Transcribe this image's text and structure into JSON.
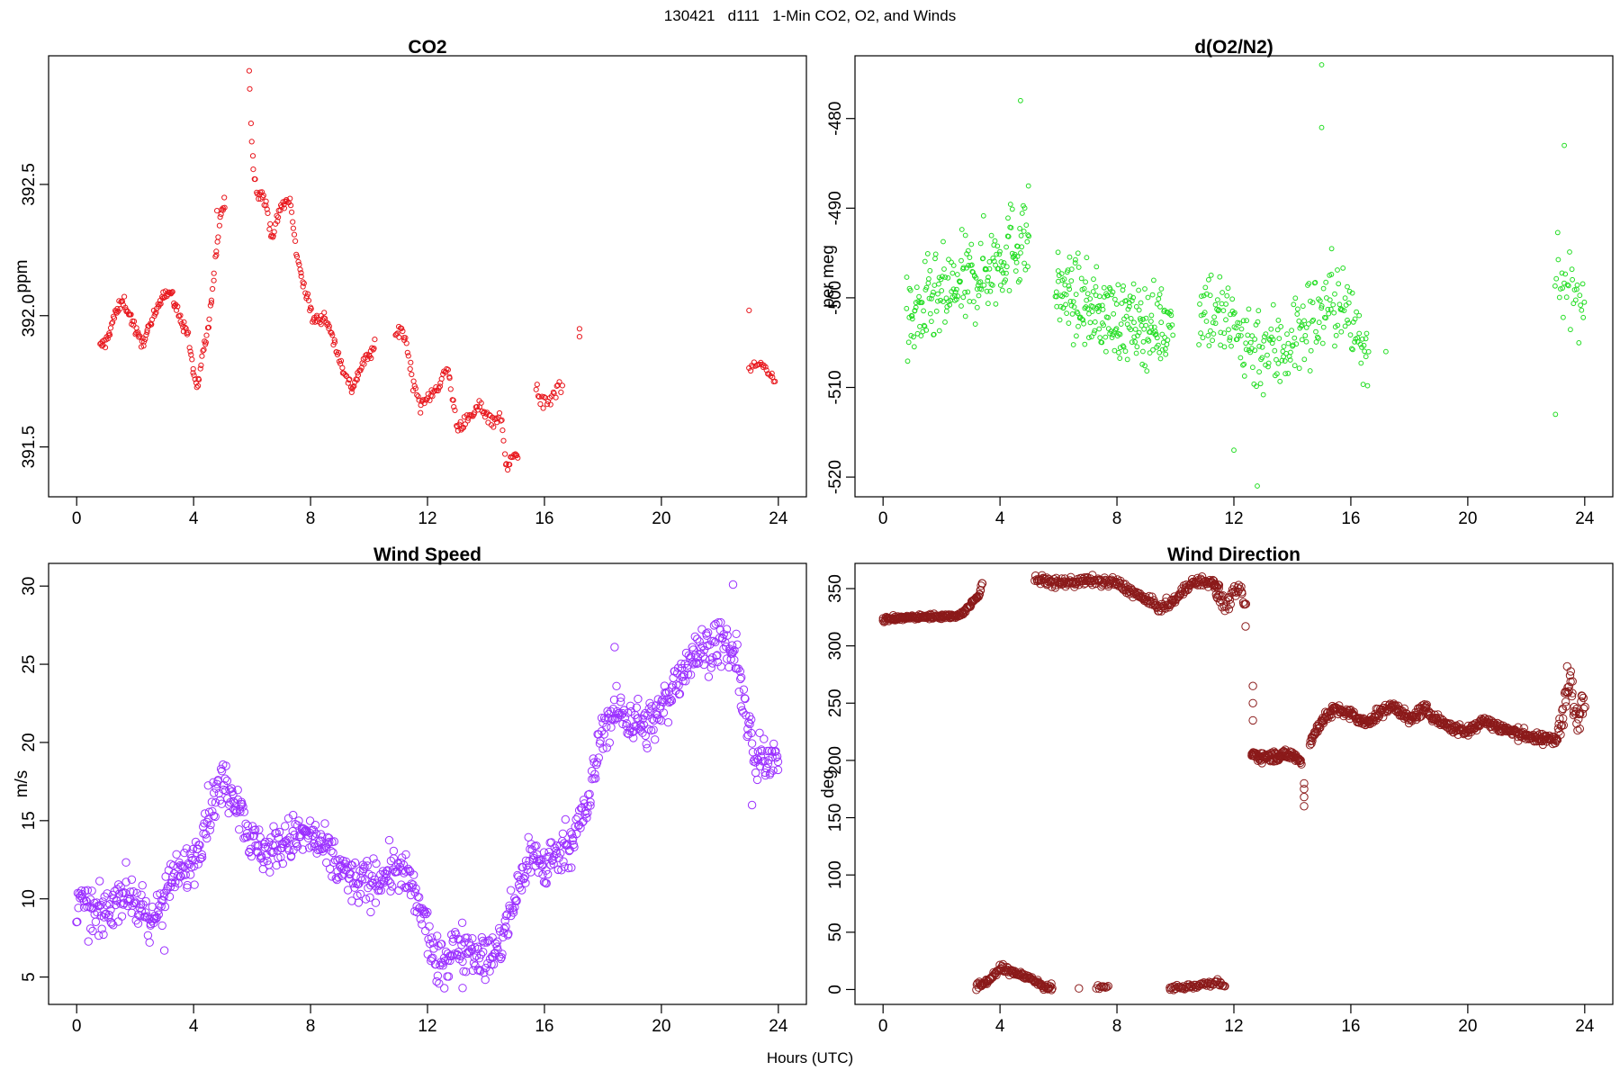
{
  "figure": {
    "title": "130421   d111   1-Min CO2, O2, and Winds",
    "xlabel": "Hours (UTC)"
  },
  "chart_data": [
    {
      "type": "scatter",
      "title": "CO2",
      "ylabel": "ppm",
      "xlim": [
        -0.96,
        24.96
      ],
      "ylim": [
        391.31,
        392.99
      ],
      "xticks": [
        0,
        4,
        8,
        12,
        16,
        20,
        24
      ],
      "yticks": [
        391.5,
        392.0,
        392.5
      ],
      "ytick_labels": [
        "391.5",
        "392.0",
        "392.5"
      ],
      "color": "#e8181e",
      "marker_r": 2.6,
      "key": [
        [
          0.8,
          391.88
        ],
        [
          1.0,
          391.9
        ],
        [
          1.3,
          392.0
        ],
        [
          1.6,
          392.06
        ],
        [
          1.9,
          391.98
        ],
        [
          2.2,
          391.89
        ],
        [
          2.6,
          391.98
        ],
        [
          2.9,
          392.08
        ],
        [
          3.2,
          392.09
        ],
        [
          3.5,
          392.0
        ],
        [
          3.8,
          391.93
        ],
        [
          4.0,
          391.78
        ],
        [
          4.15,
          391.72
        ],
        [
          4.3,
          391.85
        ],
        [
          4.5,
          391.95
        ],
        [
          4.7,
          392.15
        ],
        [
          4.9,
          392.38
        ],
        [
          5.05,
          392.43
        ]
      ],
      "segments": [
        {
          "key": [
            [
              5.9,
              392.93
            ],
            [
              6.0,
              392.62
            ],
            [
              6.15,
              392.48
            ],
            [
              6.4,
              392.45
            ],
            [
              6.7,
              392.3
            ],
            [
              7.0,
              392.42
            ],
            [
              7.3,
              392.44
            ],
            [
              7.5,
              392.25
            ],
            [
              7.8,
              392.1
            ],
            [
              8.1,
              391.98
            ],
            [
              8.5,
              392.0
            ],
            [
              8.8,
              391.9
            ],
            [
              9.1,
              391.8
            ],
            [
              9.4,
              391.72
            ],
            [
              9.8,
              391.82
            ],
            [
              10.2,
              391.88
            ]
          ],
          "n": 140,
          "noise": 0.022
        },
        {
          "key": [
            [
              10.9,
              391.92
            ],
            [
              11.1,
              391.96
            ],
            [
              11.3,
              391.88
            ],
            [
              11.5,
              391.75
            ],
            [
              11.8,
              391.65
            ],
            [
              12.1,
              391.7
            ],
            [
              12.4,
              391.74
            ],
            [
              12.7,
              391.8
            ],
            [
              13.0,
              391.58
            ],
            [
              13.4,
              391.6
            ],
            [
              13.8,
              391.66
            ],
            [
              14.2,
              391.6
            ],
            [
              14.5,
              391.62
            ],
            [
              14.7,
              391.42
            ],
            [
              14.9,
              391.48
            ],
            [
              15.1,
              391.45
            ]
          ],
          "n": 120,
          "noise": 0.025
        },
        {
          "key": [
            [
              15.7,
              391.7
            ],
            [
              16.0,
              391.68
            ],
            [
              16.2,
              391.65
            ],
            [
              16.4,
              391.72
            ],
            [
              16.6,
              391.75
            ]
          ],
          "n": 22,
          "noise": 0.04
        },
        {
          "key": [
            [
              23.0,
              391.8
            ],
            [
              23.4,
              391.82
            ],
            [
              23.7,
              391.78
            ],
            [
              23.9,
              391.75
            ]
          ],
          "n": 22,
          "noise": 0.012
        }
      ],
      "extras": [
        [
          17.2,
          391.95
        ],
        [
          17.2,
          391.92
        ],
        [
          23.0,
          392.02
        ],
        [
          5.05,
          392.45
        ],
        [
          4.8,
          392.4
        ]
      ],
      "n": 150,
      "noise": 0.022
    },
    {
      "type": "scatter",
      "title": "d(O2/N2)",
      "ylabel": "per meg",
      "xlim": [
        -0.96,
        24.96
      ],
      "ylim": [
        -522.2,
        -473.0
      ],
      "xticks": [
        0,
        4,
        8,
        12,
        16,
        20,
        24
      ],
      "yticks": [
        -520,
        -510,
        -500,
        -490,
        -480
      ],
      "ytick_labels": [
        "-520",
        "-510",
        "-500",
        "-490",
        "-480"
      ],
      "color": "#22dd22",
      "marker_r": 2.4,
      "segments": [
        {
          "key": [
            [
              0.8,
              -503
            ],
            [
              1.5,
              -501
            ],
            [
              2.5,
              -499
            ],
            [
              3.5,
              -497
            ],
            [
              4.5,
              -494
            ],
            [
              5.0,
              -493
            ]
          ],
          "n": 200,
          "noise": 4.8
        },
        {
          "key": [
            [
              5.9,
              -499
            ],
            [
              7.0,
              -501
            ],
            [
              8.5,
              -503
            ],
            [
              9.9,
              -503
            ]
          ],
          "n": 220,
          "noise": 4.2
        },
        {
          "key": [
            [
              10.8,
              -500
            ],
            [
              12.5,
              -505
            ],
            [
              13.5,
              -506
            ],
            [
              14.5,
              -503
            ],
            [
              15.5,
              -500
            ],
            [
              16.6,
              -506
            ]
          ],
          "n": 230,
          "noise": 5.0
        },
        {
          "key": [
            [
              23.0,
              -495
            ],
            [
              23.5,
              -500
            ],
            [
              24.0,
              -502
            ]
          ],
          "n": 30,
          "noise": 4.5
        }
      ],
      "extras": [
        [
          4.7,
          -478
        ],
        [
          15.0,
          -474
        ],
        [
          15.0,
          -481
        ],
        [
          12.8,
          -521
        ],
        [
          12.0,
          -517
        ],
        [
          23.3,
          -483
        ],
        [
          17.2,
          -506
        ],
        [
          23.0,
          -513
        ]
      ]
    },
    {
      "type": "scatter",
      "title": "Wind Speed",
      "ylabel": "m/s",
      "xlim": [
        -0.96,
        24.96
      ],
      "ylim": [
        3.25,
        31.45
      ],
      "xticks": [
        0,
        4,
        8,
        12,
        16,
        20,
        24
      ],
      "yticks": [
        5,
        10,
        15,
        20,
        25,
        30
      ],
      "ytick_labels": [
        "5",
        "10",
        "15",
        "20",
        "25",
        "30"
      ],
      "color": "#9b30ff",
      "marker_r": 4.2,
      "key": [
        [
          0.0,
          10.0
        ],
        [
          0.5,
          9.0
        ],
        [
          1.0,
          9.0
        ],
        [
          1.5,
          10.5
        ],
        [
          2.0,
          10.0
        ],
        [
          2.5,
          8.0
        ],
        [
          3.0,
          10.5
        ],
        [
          3.5,
          11.5
        ],
        [
          4.0,
          12.5
        ],
        [
          4.5,
          15.5
        ],
        [
          5.0,
          17.5
        ],
        [
          5.5,
          16.5
        ],
        [
          6.0,
          13.5
        ],
        [
          6.5,
          13.0
        ],
        [
          7.0,
          13.5
        ],
        [
          7.5,
          14.0
        ],
        [
          8.0,
          14.0
        ],
        [
          8.5,
          13.0
        ],
        [
          9.0,
          12.0
        ],
        [
          9.5,
          11.0
        ],
        [
          10.0,
          11.0
        ],
        [
          10.5,
          11.5
        ],
        [
          11.0,
          12.0
        ],
        [
          11.5,
          10.5
        ],
        [
          12.0,
          8.0
        ],
        [
          12.3,
          5.5
        ],
        [
          13.0,
          7.0
        ],
        [
          13.5,
          7.0
        ],
        [
          14.0,
          6.0
        ],
        [
          14.5,
          7.0
        ],
        [
          15.0,
          10.0
        ],
        [
          15.5,
          13.0
        ],
        [
          16.0,
          12.0
        ],
        [
          16.5,
          13.0
        ],
        [
          17.0,
          14.0
        ],
        [
          17.5,
          16.0
        ],
        [
          18.0,
          21.0
        ],
        [
          18.5,
          22.0
        ],
        [
          19.0,
          21.5
        ],
        [
          19.5,
          21.0
        ],
        [
          20.0,
          22.0
        ],
        [
          20.5,
          24.0
        ],
        [
          21.0,
          25.5
        ],
        [
          21.5,
          26.0
        ],
        [
          22.0,
          26.5
        ],
        [
          22.5,
          25.5
        ],
        [
          22.9,
          22.0
        ],
        [
          23.2,
          18.5
        ],
        [
          23.5,
          19.0
        ],
        [
          24.0,
          19.5
        ]
      ],
      "n": 1000,
      "noise": 1.4,
      "extras": [
        [
          22.45,
          30.1
        ],
        [
          18.4,
          26.1
        ],
        [
          13.2,
          4.3
        ],
        [
          3.0,
          6.7
        ],
        [
          23.1,
          16.0
        ]
      ]
    },
    {
      "type": "scatter",
      "title": "Wind Direction",
      "ylabel": "deg",
      "xlim": [
        -0.96,
        24.96
      ],
      "ylim": [
        -13.0,
        372.0
      ],
      "xticks": [
        0,
        4,
        8,
        12,
        16,
        20,
        24
      ],
      "yticks": [
        0,
        50,
        100,
        150,
        200,
        250,
        300,
        350
      ],
      "ytick_labels": [
        "0",
        "50",
        "100",
        "150",
        "200",
        "250",
        "300",
        "350"
      ],
      "color": "#8b1a1a",
      "marker_r": 4.2,
      "segments": [
        {
          "key": [
            [
              0.0,
              323
            ],
            [
              1.0,
              325
            ],
            [
              2.0,
              326
            ],
            [
              2.5,
              326
            ],
            [
              2.8,
              330
            ],
            [
              3.1,
              340
            ],
            [
              3.3,
              345
            ],
            [
              3.4,
              355
            ]
          ],
          "n": 180,
          "noise": 2.0
        },
        {
          "key": [
            [
              3.2,
              2
            ],
            [
              3.6,
              8
            ],
            [
              4.0,
              18
            ],
            [
              4.5,
              15
            ],
            [
              5.0,
              10
            ],
            [
              5.5,
              3
            ],
            [
              5.8,
              1
            ]
          ],
          "n": 120,
          "noise": 3.0
        },
        {
          "key": [
            [
              5.2,
              358
            ],
            [
              6.0,
              355
            ],
            [
              7.0,
              357
            ],
            [
              8.0,
              355
            ],
            [
              9.0,
              340
            ],
            [
              9.5,
              333
            ],
            [
              10.0,
              340
            ],
            [
              10.5,
              355
            ],
            [
              11.0,
              356
            ],
            [
              11.5,
              353
            ]
          ],
          "n": 260,
          "noise": 4.0
        },
        {
          "key": [
            [
              7.3,
              2
            ],
            [
              7.7,
              2
            ]
          ],
          "n": 10,
          "noise": 1.5
        },
        {
          "key": [
            [
              9.8,
              1
            ],
            [
              10.5,
              3
            ],
            [
              11.0,
              5
            ],
            [
              11.5,
              7
            ],
            [
              11.7,
              3
            ]
          ],
          "n": 60,
          "noise": 2.5
        },
        {
          "key": [
            [
              11.3,
              350
            ],
            [
              11.7,
              335
            ],
            [
              12.0,
              345
            ],
            [
              12.2,
              350
            ],
            [
              12.4,
              335
            ]
          ],
          "n": 40,
          "noise": 6.0
        },
        {
          "key": [
            [
              12.6,
              205
            ],
            [
              13.0,
              203
            ],
            [
              13.5,
              204
            ],
            [
              14.0,
              205
            ],
            [
              14.3,
              200
            ]
          ],
          "n": 110,
          "noise": 4.0
        },
        {
          "key": [
            [
              14.6,
              215
            ],
            [
              15.0,
              235
            ],
            [
              15.5,
              245
            ],
            [
              16.0,
              240
            ],
            [
              16.5,
              232
            ],
            [
              17.0,
              242
            ],
            [
              17.5,
              248
            ],
            [
              18.0,
              235
            ],
            [
              18.5,
              245
            ],
            [
              19.0,
              235
            ],
            [
              19.5,
              228
            ],
            [
              20.0,
              225
            ],
            [
              20.5,
              235
            ],
            [
              21.0,
              230
            ],
            [
              21.5,
              225
            ],
            [
              22.0,
              222
            ],
            [
              22.5,
              218
            ],
            [
              23.0,
              220
            ]
          ],
          "n": 440,
          "noise": 4.5
        },
        {
          "key": [
            [
              23.0,
              215
            ],
            [
              23.3,
              245
            ],
            [
              23.5,
              270
            ],
            [
              23.7,
              235
            ],
            [
              24.0,
              255
            ]
          ],
          "n": 50,
          "noise": 14.0
        }
      ],
      "extras": [
        [
          12.65,
          265
        ],
        [
          12.65,
          250
        ],
        [
          12.65,
          235
        ],
        [
          14.4,
          160
        ],
        [
          14.4,
          168
        ],
        [
          14.4,
          175
        ],
        [
          14.4,
          180
        ],
        [
          12.4,
          317
        ],
        [
          4.1,
          22
        ],
        [
          6.7,
          1
        ],
        [
          23.4,
          282
        ]
      ]
    }
  ]
}
